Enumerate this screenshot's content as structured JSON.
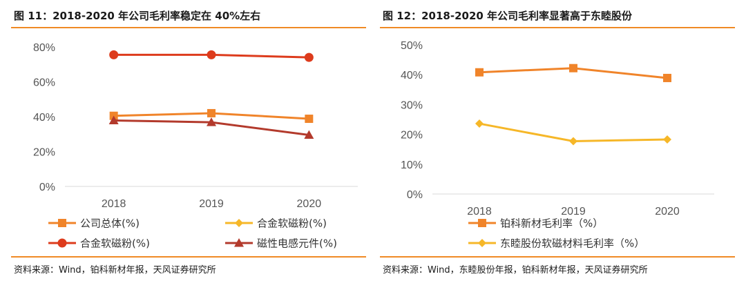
{
  "left": {
    "title": "图 11：2018-2020 年公司毛利率稳定在 40%左右",
    "source": "资料来源：Wind，铂科新材年报，天风证券研究所",
    "chart_data": {
      "type": "line",
      "categories": [
        "2018",
        "2019",
        "2020"
      ],
      "ylim": [
        0,
        80
      ],
      "yticks": [
        0,
        20,
        40,
        60,
        80
      ],
      "ytick_labels": [
        "0%",
        "20%",
        "40%",
        "60%",
        "80%"
      ],
      "series": [
        {
          "name": "公司总体(%)",
          "values": [
            40.5,
            42,
            38.8
          ],
          "color": "#f0842a",
          "marker": "square"
        },
        {
          "name": "合金软磁粉(%)",
          "values": [
            75.5,
            75.5,
            74
          ],
          "color": "#dd3b1c",
          "marker": "circle"
        },
        {
          "name": "合金软磁粉(%)",
          "values": [
            null,
            null,
            null
          ],
          "color": "#f6b728",
          "marker": "diamond"
        },
        {
          "name": "磁性电感元件(%)",
          "values": [
            37.8,
            36.8,
            29.5
          ],
          "color": "#b33a2c",
          "marker": "triangle"
        }
      ]
    }
  },
  "right": {
    "title": "图 12：2018-2020 年公司毛利率显著高于东睦股份",
    "source": "资料来源：Wind，东睦股份年报，铂科新材年报，天风证券研究所",
    "chart_data": {
      "type": "line",
      "categories": [
        "2018",
        "2019",
        "2020"
      ],
      "ylim": [
        0,
        50
      ],
      "yticks": [
        0,
        10,
        20,
        30,
        40,
        50
      ],
      "ytick_labels": [
        "0%",
        "10%",
        "20%",
        "30%",
        "40%",
        "50%"
      ],
      "series": [
        {
          "name": "铂科新材毛利率（%）",
          "values": [
            40.8,
            42.2,
            38.9
          ],
          "color": "#f0842a",
          "marker": "square"
        },
        {
          "name": "东睦股份软磁材料毛利率（%）",
          "values": [
            23.6,
            17.7,
            18.3
          ],
          "color": "#f6b728",
          "marker": "diamond"
        }
      ]
    }
  }
}
